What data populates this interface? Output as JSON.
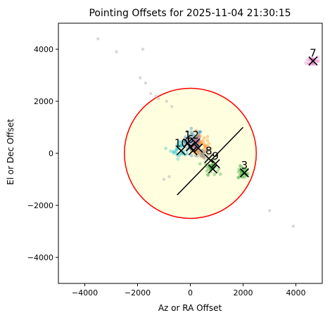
{
  "chart_data": {
    "type": "scatter",
    "title": "Pointing Offsets for 2025-11-04 21:30:15",
    "xlabel": "Az or RA Offset",
    "ylabel": "El or Dec Offset",
    "xlim": [
      -5000,
      5000
    ],
    "ylim": [
      -5000,
      5000
    ],
    "xticks": [
      -4000,
      -2000,
      0,
      2000,
      4000
    ],
    "yticks": [
      -4000,
      -2000,
      0,
      2000,
      4000
    ],
    "xtick_labels": [
      "−4000",
      "−2000",
      "0",
      "2000",
      "4000"
    ],
    "ytick_labels": [
      "−4000",
      "−2000",
      "0",
      "2000",
      "4000"
    ],
    "grid": false,
    "circle": {
      "center": [
        0,
        0
      ],
      "radius": 2500,
      "edge_color": "#ff0000",
      "fill_color": "#ffffe0"
    },
    "diagonal_line": {
      "x": [
        -500,
        2000
      ],
      "y": [
        -1600,
        1000
      ],
      "color": "#000000"
    },
    "background_points": {
      "color": "#bfbfbf",
      "x": [
        -3500,
        -2800,
        -1800,
        -1900,
        -1700,
        -1500,
        -1300,
        -1200,
        -900,
        -700,
        3000,
        3900,
        -800,
        -1000
      ],
      "y": [
        4400,
        3900,
        4000,
        2900,
        2700,
        2300,
        2200,
        2100,
        2000,
        1800,
        -2200,
        -2800,
        -900,
        -1000
      ]
    },
    "clusters": [
      {
        "label": "1",
        "color": "#1f77b4",
        "center": [
          100,
          500
        ],
        "spread": [
          350,
          450
        ],
        "n": 45
      },
      {
        "label": "2",
        "color": "#ff7f0e",
        "center": [
          350,
          300
        ],
        "spread": [
          400,
          450
        ],
        "n": 45
      },
      {
        "label": "3",
        "color": "#2ca02c",
        "center": [
          2000,
          -750
        ],
        "spread": [
          200,
          250
        ],
        "n": 30
      },
      {
        "label": "6",
        "color": "#9467bd",
        "center": [
          150,
          400
        ],
        "spread": [
          250,
          300
        ],
        "n": 25
      },
      {
        "label": "7",
        "color": "#e377c2",
        "center": [
          4650,
          3550
        ],
        "spread": [
          250,
          200
        ],
        "n": 30
      },
      {
        "label": "8",
        "color": "#2ca02c",
        "center": [
          800,
          -550
        ],
        "spread": [
          250,
          250
        ],
        "n": 30
      },
      {
        "label": "9",
        "color": "#7f7f7f",
        "center": [
          450,
          0
        ],
        "spread": [
          250,
          250
        ],
        "n": 20
      },
      {
        "label": "10",
        "color": "#17becf",
        "center": [
          -350,
          150
        ],
        "spread": [
          400,
          350
        ],
        "n": 35
      }
    ],
    "markers": [
      {
        "label": "7",
        "x": 4650,
        "y": 3550
      },
      {
        "label": "1",
        "x": -100,
        "y": 400
      },
      {
        "label": "2",
        "x": 200,
        "y": 400
      },
      {
        "label": "6",
        "x": 0,
        "y": 250
      },
      {
        "label": "10",
        "x": -350,
        "y": 100
      },
      {
        "label": "",
        "x": 100,
        "y": 100
      },
      {
        "label": "",
        "x": 300,
        "y": 200
      },
      {
        "label": "8",
        "x": 700,
        "y": -200
      },
      {
        "label": "9",
        "x": 950,
        "y": -400
      },
      {
        "label": "",
        "x": 850,
        "y": -600
      },
      {
        "label": "3",
        "x": 2050,
        "y": -750
      }
    ]
  }
}
